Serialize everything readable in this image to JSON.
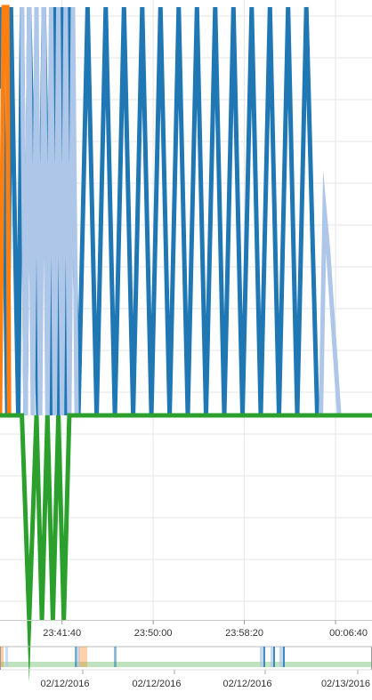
{
  "colors": {
    "dark_blue": "#1f77b4",
    "light_blue": "#aec7e8",
    "orange": "#ff7f0e",
    "green": "#2ca02c",
    "grid": "#e6e6e6",
    "axis_text": "#333333"
  },
  "chart_data": [
    {
      "type": "line",
      "role": "main-chart",
      "x_unit": "time",
      "xlim": [
        "23:36:00",
        "00:10:00"
      ],
      "x_tick_labels": [
        "23:41:40",
        "23:50:00",
        "23:58:20",
        "00:06:40"
      ],
      "x_ticks": [
        "23:41:40",
        "23:50:00",
        "23:58:20",
        "00:06:40"
      ],
      "ylim": [
        -5,
        10
      ],
      "grid": true,
      "legend": "none",
      "series": [
        {
          "color": "#1f77b4",
          "x": [
            "23:36:00",
            "23:36:10",
            "23:36:40",
            "23:37:00",
            "23:37:40",
            "23:38:00",
            "23:38:20",
            "23:38:40",
            "23:39:30",
            "23:40:00",
            "23:40:40",
            "23:41:00",
            "23:41:20",
            "23:41:40",
            "23:42:00",
            "23:42:20",
            "23:43:10",
            "23:44:00",
            "23:44:50",
            "23:45:40",
            "23:46:30",
            "23:47:20",
            "23:48:10",
            "23:49:00",
            "23:49:50",
            "23:50:40",
            "23:51:30",
            "23:52:20",
            "23:53:10",
            "23:54:00",
            "23:54:50",
            "23:55:40",
            "23:56:30",
            "23:57:20",
            "23:58:10",
            "23:59:00",
            "23:59:50",
            "00:00:40",
            "00:01:30",
            "00:02:20",
            "00:03:10",
            "00:04:00",
            "00:05:00",
            "00:06:00"
          ],
          "y": [
            8,
            10,
            0,
            10,
            0,
            10,
            0,
            10,
            0,
            10,
            0,
            10,
            0,
            10,
            0,
            10,
            0,
            10,
            0,
            10,
            0,
            10,
            0,
            10,
            0,
            10,
            0,
            10,
            0,
            10,
            0,
            10,
            0,
            10,
            0,
            10,
            0,
            10,
            0,
            10,
            0,
            10,
            0,
            0
          ]
        },
        {
          "color": "#aec7e8",
          "x": [
            "23:38:00",
            "23:38:20",
            "23:38:40",
            "23:39:00",
            "23:39:20",
            "23:39:40",
            "23:40:00",
            "23:40:20",
            "23:40:40",
            "23:41:00",
            "23:41:20",
            "23:41:40",
            "23:42:00",
            "23:42:20",
            "23:42:40",
            "23:43:00",
            "00:05:20",
            "00:05:40",
            "00:06:00",
            "00:07:00"
          ],
          "y": [
            10,
            0,
            10,
            0,
            10,
            0,
            10,
            0,
            10,
            0,
            10,
            0,
            10,
            0,
            10,
            0,
            0,
            5,
            4,
            0
          ]
        },
        {
          "color": "#ff7f0e",
          "x": [
            "23:36:00",
            "23:36:20",
            "23:36:40",
            "23:36:50"
          ],
          "y": [
            0,
            10,
            10,
            0
          ]
        },
        {
          "color": "#2ca02c",
          "x": [
            "23:36:00",
            "23:38:00",
            "23:38:40",
            "23:39:20",
            "23:39:50",
            "23:40:20",
            "23:40:50",
            "23:41:20",
            "23:41:50",
            "23:42:20",
            "23:43:20",
            "00:10:00"
          ],
          "y": [
            0,
            0,
            -5,
            0,
            -5,
            0,
            -5,
            0,
            -5,
            0,
            0,
            0
          ]
        }
      ]
    },
    {
      "type": "area",
      "role": "overview-navigator",
      "x_tick_labels": [
        "02/12/2016",
        "02/12/2016",
        "02/12/2016",
        "02/13/2016"
      ]
    }
  ]
}
